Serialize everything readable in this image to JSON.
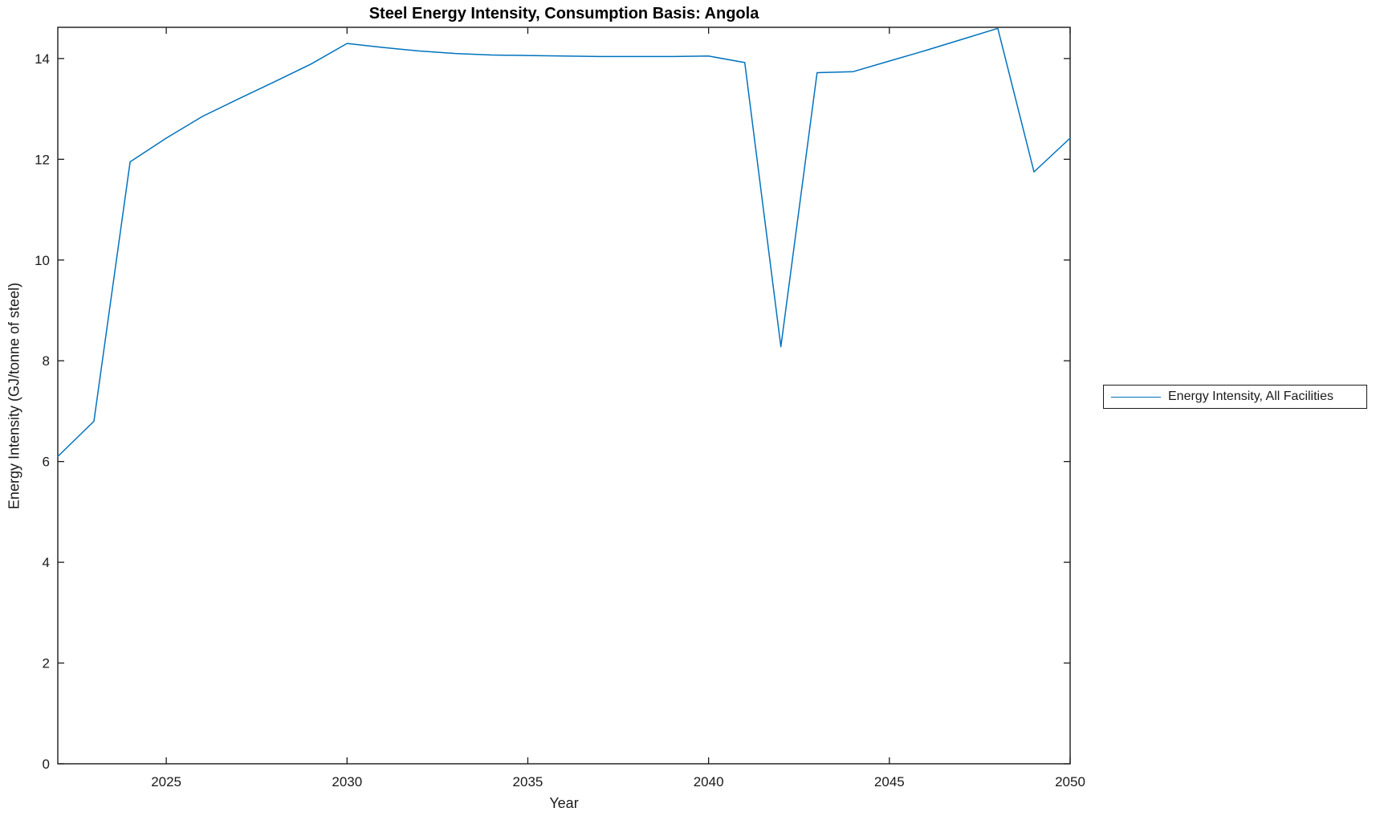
{
  "chart_data": {
    "type": "line",
    "title": "Steel Energy Intensity, Consumption Basis: Angola",
    "xlabel": "Year",
    "ylabel": "Energy Intensity (GJ/tonne of steel)",
    "xlim": [
      2022,
      2050
    ],
    "ylim": [
      0,
      14.62
    ],
    "x_ticks": [
      2025,
      2030,
      2035,
      2040,
      2045,
      2050
    ],
    "y_ticks": [
      0,
      2,
      4,
      6,
      8,
      10,
      12,
      14
    ],
    "grid": false,
    "box": true,
    "tick_direction": "in",
    "legend": {
      "position": "outside-right-middle",
      "entries": [
        {
          "label": "Energy Intensity, All Facilities",
          "color": "#0072BD"
        }
      ]
    },
    "series": [
      {
        "name": "Energy Intensity, All Facilities",
        "color": "#0072BD",
        "x": [
          2022,
          2023,
          2024,
          2025,
          2026,
          2027,
          2028,
          2029,
          2030,
          2031,
          2032,
          2033,
          2034,
          2035,
          2036,
          2037,
          2038,
          2039,
          2040,
          2041,
          2042,
          2043,
          2044,
          2045,
          2046,
          2047,
          2048,
          2049,
          2050
        ],
        "y": [
          6.1,
          6.8,
          11.95,
          12.42,
          12.85,
          13.2,
          13.54,
          13.89,
          14.3,
          14.22,
          14.15,
          14.1,
          14.07,
          14.06,
          14.05,
          14.04,
          14.04,
          14.04,
          14.05,
          13.92,
          8.28,
          13.72,
          13.74,
          13.95,
          14.16,
          14.38,
          14.6,
          11.75,
          12.42
        ]
      }
    ],
    "colors": {
      "line": "#0072BD",
      "axis": "#1a1a1a",
      "background": "#ffffff",
      "title": "#000000"
    }
  }
}
